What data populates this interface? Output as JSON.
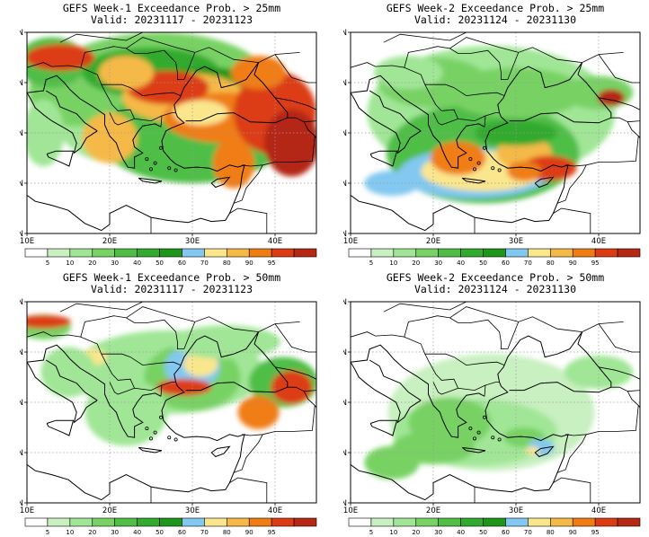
{
  "panels": [
    {
      "id": "w1-25",
      "title": "GEFS Week-1 Exceedance Prob. > 25mm",
      "valid": "Valid: 20231117 - 20231123"
    },
    {
      "id": "w2-25",
      "title": "GEFS Week-2 Exceedance Prob. > 25mm",
      "valid": "Valid: 20231124 - 20231130"
    },
    {
      "id": "w1-50",
      "title": "GEFS Week-1 Exceedance Prob. > 50mm",
      "valid": "Valid: 20231117 - 20231123"
    },
    {
      "id": "w2-50",
      "title": "GEFS Week-2 Exceedance Prob. > 50mm",
      "valid": "Valid: 20231124 - 20231130"
    }
  ],
  "axes": {
    "lat_labels": [
      "50N",
      "45N",
      "40N",
      "35N",
      "30N"
    ],
    "lon_labels": [
      "10E",
      "20E",
      "30E",
      "40E"
    ]
  },
  "colorbar": {
    "levels": [
      "5",
      "10",
      "20",
      "30",
      "40",
      "50",
      "60",
      "70",
      "80",
      "90",
      "95"
    ],
    "colors": [
      "#ffffff",
      "#c8f0c0",
      "#a0e696",
      "#78d264",
      "#50be46",
      "#32aa2d",
      "#1e9619",
      "#82c8f0",
      "#fae68c",
      "#f5b946",
      "#f07d14",
      "#dc3c14",
      "#b42814"
    ]
  }
}
